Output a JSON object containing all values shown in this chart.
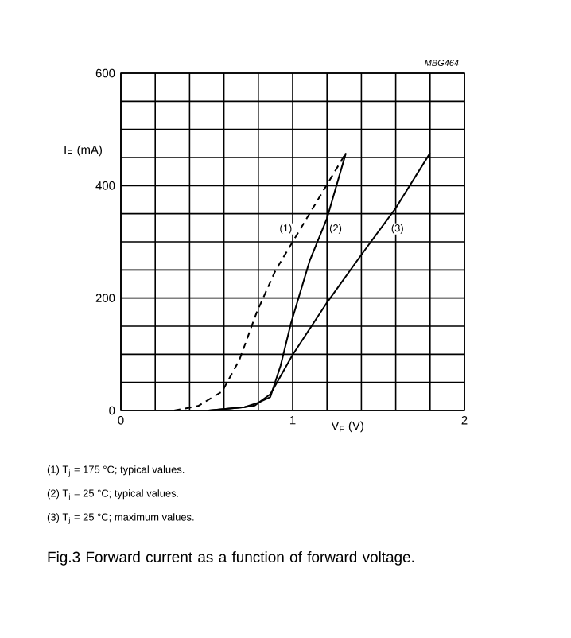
{
  "chart_data": {
    "type": "line",
    "title": "Fig.3 Forward current as a function of forward voltage.",
    "xlabel": "V$_{F}$ (V)",
    "ylabel": "I$_{F}$ (mA)",
    "xlim": [
      0,
      2
    ],
    "ylim": [
      0,
      600
    ],
    "xticks": [
      0,
      {
        "value": 0.2,
        "label": null
      },
      {
        "value": 0.4,
        "label": null
      },
      {
        "value": 0.6,
        "label": null
      },
      {
        "value": 0.8,
        "label": null
      },
      1,
      {
        "value": 1.2,
        "label": null
      },
      {
        "value": 1.4,
        "label": null
      },
      {
        "value": 1.6,
        "label": null
      },
      {
        "value": 1.8,
        "label": null
      },
      2
    ],
    "yticks": [
      0,
      {
        "value": 50,
        "label": null
      },
      {
        "value": 100,
        "label": null
      },
      {
        "value": 150,
        "label": null
      },
      200,
      {
        "value": 250,
        "label": null
      },
      {
        "value": 300,
        "label": null
      },
      {
        "value": 350,
        "label": null
      },
      400,
      {
        "value": 450,
        "label": null
      },
      {
        "value": 500,
        "label": null
      },
      {
        "value": 550,
        "label": null
      },
      600
    ],
    "grid": true,
    "marker": "none",
    "series": [
      {
        "color": "#000000",
        "line_style": "dashed",
        "x": [
          0.31,
          0.45,
          0.59,
          0.69,
          0.79,
          0.9,
          1.0,
          1.2,
          1.31
        ],
        "values": [
          0,
          8,
          34,
          90,
          174,
          249,
          300,
          402,
          458
        ]
      },
      {
        "color": "#000000",
        "line_style": "solid",
        "x": [
          0.51,
          0.72,
          0.8,
          0.87,
          0.93,
          0.99,
          1.1,
          1.2,
          1.31
        ],
        "values": [
          0,
          6,
          14,
          24,
          80,
          155,
          267,
          342,
          458
        ]
      },
      {
        "color": "#000000",
        "line_style": "solid",
        "x": [
          0.51,
          0.72,
          0.78,
          0.87,
          1.0,
          1.2,
          1.4,
          1.6,
          1.8
        ],
        "values": [
          0,
          6,
          9,
          29,
          99,
          192,
          277,
          360,
          458
        ]
      }
    ],
    "annotations": [
      {
        "text": "(1)",
        "x": 0.96,
        "y": 323
      },
      {
        "text": "(2)",
        "x": 1.25,
        "y": 323
      },
      {
        "text": "(3)",
        "x": 1.61,
        "y": 323
      },
      "MBG464",
      "(1)  T$_{j}$ = 175 °C; typical values.",
      "(2)  T$_{j}$ = 25 °C; typical values.",
      "(3)  T$_{j}$ = 25 °C; maximum values."
    ]
  }
}
